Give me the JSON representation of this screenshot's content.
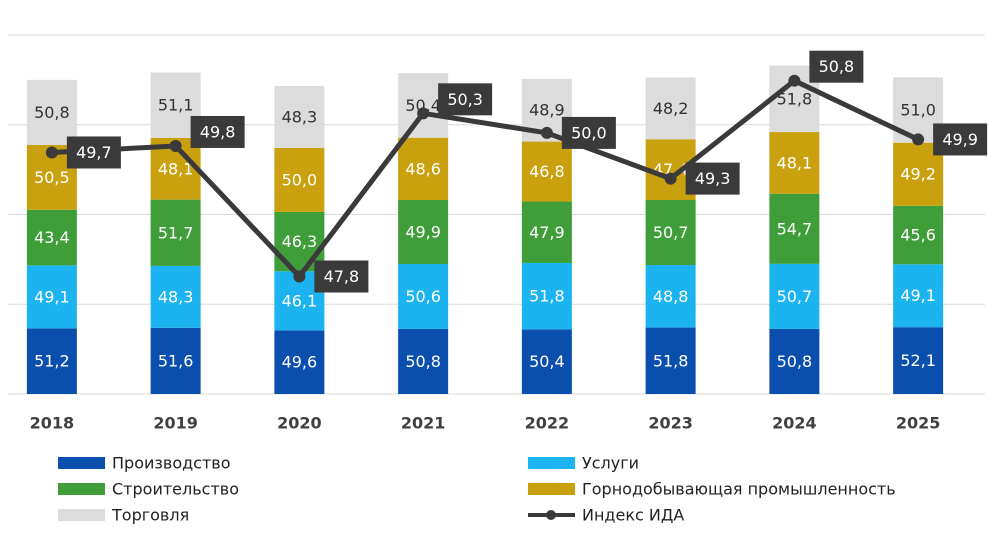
{
  "chart_data": {
    "type": "stacked_bar_line",
    "categories": [
      "2018",
      "2019",
      "2020",
      "2021",
      "2022",
      "2023",
      "2024",
      "2025"
    ],
    "ylim": [
      0,
      280
    ],
    "yticks": [
      0,
      70,
      140,
      210,
      280
    ],
    "y2lim": [
      46,
      51.5
    ],
    "grid": true,
    "legend": "bottom",
    "series": [
      {
        "name": "Производство",
        "color": "#0b4fae",
        "values": [
          51.2,
          51.6,
          49.6,
          50.8,
          50.4,
          51.8,
          50.8,
          52.1
        ],
        "value_labels": [
          "51,2",
          "51,6",
          "49,6",
          "50,8",
          "50,4",
          "51,8",
          "50,8",
          "52,1"
        ]
      },
      {
        "name": "Услуги",
        "color": "#1cb4f0",
        "values": [
          49.1,
          48.3,
          46.1,
          50.6,
          51.8,
          48.8,
          50.7,
          49.1
        ],
        "value_labels": [
          "49,1",
          "48,3",
          "46,1",
          "50,6",
          "51,8",
          "48,8",
          "50,7",
          "49,1"
        ]
      },
      {
        "name": "Строительство",
        "color": "#3f9e3a",
        "values": [
          43.4,
          51.7,
          46.3,
          49.9,
          47.9,
          50.7,
          54.7,
          45.6
        ],
        "value_labels": [
          "43,4",
          "51,7",
          "46,3",
          "49,9",
          "47,9",
          "50,7",
          "54,7",
          "45,6"
        ]
      },
      {
        "name": "Горнодобывающая промышленность",
        "color": "#c9a10f",
        "values": [
          50.5,
          48.1,
          50.0,
          48.6,
          46.8,
          47.4,
          48.1,
          49.2
        ],
        "value_labels": [
          "50,5",
          "48,1",
          "50,0",
          "48,6",
          "46,8",
          "47,4",
          "48,1",
          "49,2"
        ]
      },
      {
        "name": "Торговля",
        "color": "#dcdcdc",
        "values": [
          50.8,
          51.1,
          48.3,
          50.4,
          48.9,
          48.2,
          51.8,
          51.0
        ],
        "value_labels": [
          "50,8",
          "51,1",
          "48,3",
          "50,4",
          "48,9",
          "48,2",
          "51,8",
          "51,0"
        ]
      },
      {
        "name": "Индекс ИДА",
        "color": "#3a3a3a",
        "axis": "y2",
        "type": "line",
        "values": [
          49.7,
          49.8,
          47.8,
          50.3,
          50.0,
          49.3,
          50.8,
          49.9
        ],
        "value_labels": [
          "49,7",
          "49,8",
          "47,8",
          "50,3",
          "50,0",
          "49,3",
          "50,8",
          "49,9"
        ]
      }
    ]
  }
}
